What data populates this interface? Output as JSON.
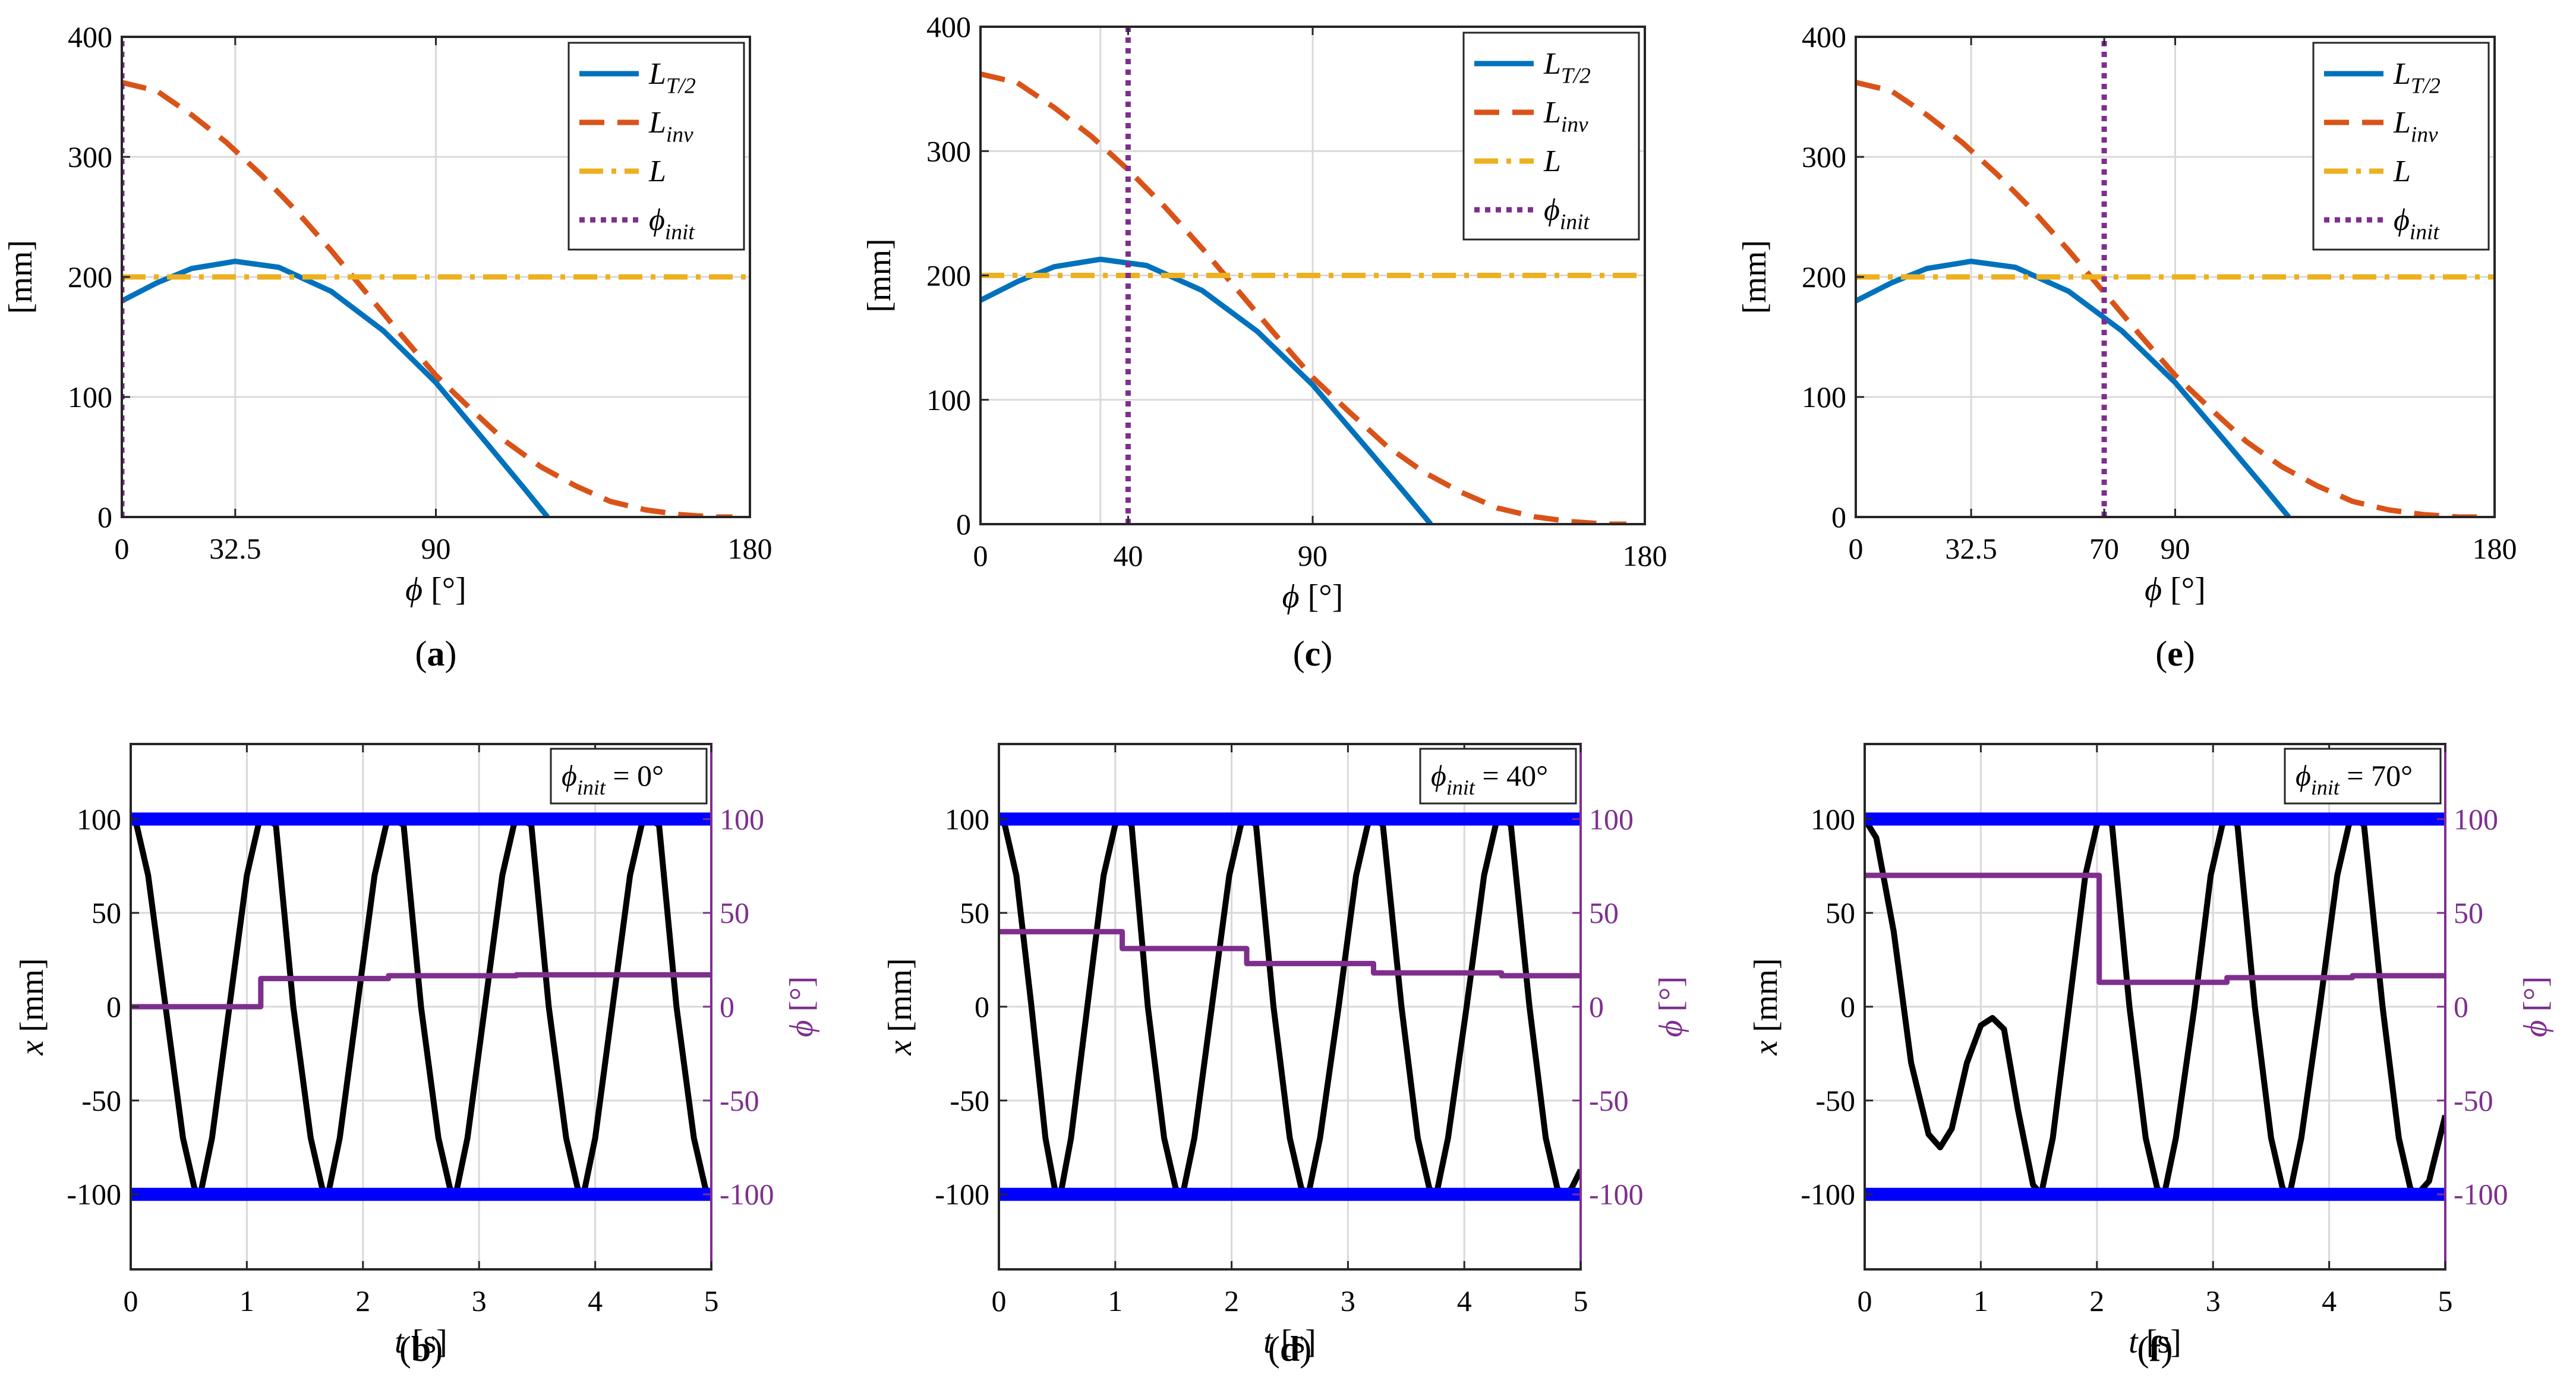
{
  "figure": {
    "panel_labels": [
      "(a)",
      "(c)",
      "(e)",
      "(b)",
      "(d)",
      "(f)"
    ]
  },
  "colors": {
    "L_T2": "#0072BD",
    "L_inv": "#D95319",
    "L": "#EDB120",
    "phi_init": "#7E2F8E",
    "x": "#000000",
    "bounds": "#0000FF",
    "phi_axis": "#7E2F8E",
    "grid": "#d9d9d9"
  },
  "chart_data": [
    {
      "id": "a",
      "type": "line",
      "panel_label": "(a)",
      "xlabel": "ϕ [°]",
      "ylabel": "[mm]",
      "xlim": [
        0,
        180
      ],
      "ylim": [
        0,
        400
      ],
      "xticks": [
        0,
        32.5,
        90,
        180
      ],
      "xtick_labels": [
        "0",
        "32.5",
        "90",
        "180"
      ],
      "yticks": [
        0,
        100,
        200,
        300,
        400
      ],
      "ytick_labels": [
        "0",
        "100",
        "200",
        "300",
        "400"
      ],
      "grid_x": [
        32.5,
        90
      ],
      "grid_y": [
        100,
        200,
        300
      ],
      "legend": [
        "L_T/2",
        "L_inv",
        "L",
        "ϕ_init"
      ],
      "legend_position": "top-right",
      "series": [
        {
          "name": "L_T/2",
          "x": [
            0,
            10,
            20,
            32.5,
            45,
            60,
            75,
            90,
            105,
            115,
            122
          ],
          "values": [
            180,
            195,
            207,
            213,
            208,
            188,
            155,
            112,
            60,
            25,
            0
          ]
        },
        {
          "name": "L_inv",
          "x": [
            0,
            10,
            20,
            30,
            40,
            50,
            60,
            70,
            80,
            90,
            100,
            110,
            120,
            130,
            140,
            150,
            160,
            170,
            175
          ],
          "values": [
            362,
            355,
            335,
            312,
            285,
            255,
            222,
            187,
            152,
            118,
            90,
            63,
            42,
            26,
            13,
            6,
            2,
            0,
            0
          ]
        },
        {
          "name": "L",
          "x": [
            0,
            180
          ],
          "values": [
            200,
            200
          ]
        },
        {
          "name": "ϕ_init",
          "x": [
            0,
            0
          ],
          "values": [
            0,
            400
          ]
        }
      ]
    },
    {
      "id": "c",
      "type": "line",
      "panel_label": "(c)",
      "xlabel": "ϕ [°]",
      "ylabel": "[mm]",
      "xlim": [
        0,
        180
      ],
      "ylim": [
        0,
        400
      ],
      "xticks": [
        0,
        40,
        90,
        180
      ],
      "xtick_labels": [
        "0",
        "40",
        "90",
        "180"
      ],
      "yticks": [
        0,
        100,
        200,
        300,
        400
      ],
      "ytick_labels": [
        "0",
        "100",
        "200",
        "300",
        "400"
      ],
      "grid_x": [
        32.5,
        90
      ],
      "grid_y": [
        100,
        200,
        300
      ],
      "legend": [
        "L_T/2",
        "L_inv",
        "L",
        "ϕ_init"
      ],
      "legend_position": "top-right",
      "series": [
        {
          "name": "L_T/2",
          "x": [
            0,
            10,
            20,
            32.5,
            45,
            60,
            75,
            90,
            105,
            115,
            122
          ],
          "values": [
            180,
            195,
            207,
            213,
            208,
            188,
            155,
            112,
            60,
            25,
            0
          ]
        },
        {
          "name": "L_inv",
          "x": [
            0,
            10,
            20,
            30,
            40,
            50,
            60,
            70,
            80,
            90,
            100,
            110,
            120,
            130,
            140,
            150,
            160,
            170,
            175
          ],
          "values": [
            362,
            355,
            335,
            312,
            285,
            255,
            222,
            187,
            152,
            118,
            90,
            63,
            42,
            26,
            13,
            6,
            2,
            0,
            0
          ]
        },
        {
          "name": "L",
          "x": [
            0,
            180
          ],
          "values": [
            200,
            200
          ]
        },
        {
          "name": "ϕ_init",
          "x": [
            40,
            40
          ],
          "values": [
            0,
            400
          ]
        }
      ]
    },
    {
      "id": "e",
      "type": "line",
      "panel_label": "(e)",
      "xlabel": "ϕ [°]",
      "ylabel": "[mm]",
      "xlim": [
        0,
        180
      ],
      "ylim": [
        0,
        400
      ],
      "xticks": [
        0,
        32.5,
        70,
        90,
        180
      ],
      "xtick_labels": [
        "0",
        "32.5",
        "70",
        "90",
        "180"
      ],
      "yticks": [
        0,
        100,
        200,
        300,
        400
      ],
      "ytick_labels": [
        "0",
        "100",
        "200",
        "300",
        "400"
      ],
      "grid_x": [
        32.5,
        90
      ],
      "grid_y": [
        100,
        200,
        300
      ],
      "legend": [
        "L_T/2",
        "L_inv",
        "L",
        "ϕ_init"
      ],
      "legend_position": "top-right",
      "series": [
        {
          "name": "L_T/2",
          "x": [
            0,
            10,
            20,
            32.5,
            45,
            60,
            75,
            90,
            105,
            115,
            122
          ],
          "values": [
            180,
            195,
            207,
            213,
            208,
            188,
            155,
            112,
            60,
            25,
            0
          ]
        },
        {
          "name": "L_inv",
          "x": [
            0,
            10,
            20,
            30,
            40,
            50,
            60,
            70,
            80,
            90,
            100,
            110,
            120,
            130,
            140,
            150,
            160,
            170,
            175
          ],
          "values": [
            362,
            355,
            335,
            312,
            285,
            255,
            222,
            187,
            152,
            118,
            90,
            63,
            42,
            26,
            13,
            6,
            2,
            0,
            0
          ]
        },
        {
          "name": "L",
          "x": [
            0,
            180
          ],
          "values": [
            200,
            200
          ]
        },
        {
          "name": "ϕ_init",
          "x": [
            70,
            70
          ],
          "values": [
            0,
            400
          ]
        }
      ]
    },
    {
      "id": "b",
      "type": "line",
      "panel_label": "(b)",
      "xlabel": "t [s]",
      "ylabel": "x [mm]",
      "ylabel_right": "ϕ [°]",
      "xlim": [
        0,
        5
      ],
      "ylim": [
        -140,
        140
      ],
      "ylim_right": [
        -140,
        140
      ],
      "xticks": [
        0,
        1,
        2,
        3,
        4,
        5
      ],
      "xtick_labels": [
        "0",
        "1",
        "2",
        "3",
        "4",
        "5"
      ],
      "yticks": [
        -100,
        -50,
        0,
        50,
        100
      ],
      "ytick_labels": [
        "-100",
        "-50",
        "0",
        "50",
        "100"
      ],
      "yticks_right": [
        -100,
        -50,
        0,
        50,
        100
      ],
      "ytick_labels_right": [
        "-100",
        "-50",
        "0",
        "50",
        "100"
      ],
      "grid_x": [
        1,
        2,
        3,
        4
      ],
      "grid_y": [
        -50,
        0,
        50
      ],
      "annotation": "ϕ_init = 0°",
      "series": [
        {
          "name": "x",
          "axis": "left",
          "x": [
            0,
            0.05,
            0.15,
            0.3,
            0.45,
            0.55,
            0.6,
            0.7,
            0.85,
            1.0,
            1.1,
            1.15,
            1.25,
            1.4,
            1.55,
            1.65,
            1.7,
            1.8,
            1.95,
            2.1,
            2.2,
            2.25,
            2.35,
            2.5,
            2.65,
            2.75,
            2.8,
            2.9,
            3.05,
            3.2,
            3.3,
            3.35,
            3.45,
            3.6,
            3.75,
            3.85,
            3.9,
            4.0,
            4.15,
            4.3,
            4.4,
            4.45,
            4.55,
            4.7,
            4.85,
            4.95,
            5.0
          ],
          "values": [
            100,
            97,
            70,
            0,
            -70,
            -97,
            -100,
            -70,
            0,
            70,
            97,
            100,
            97,
            0,
            -70,
            -97,
            -100,
            -70,
            0,
            70,
            97,
            100,
            97,
            0,
            -70,
            -97,
            -100,
            -70,
            0,
            70,
            97,
            100,
            97,
            0,
            -70,
            -97,
            -100,
            -70,
            0,
            70,
            97,
            100,
            97,
            0,
            -70,
            -97,
            -100
          ]
        },
        {
          "name": "ϕ",
          "axis": "right",
          "x": [
            0,
            1.12,
            1.12,
            2.22,
            2.22,
            3.32,
            3.32,
            4.42,
            4.42,
            5.0
          ],
          "values": [
            0,
            0,
            15,
            15,
            16.5,
            16.5,
            17,
            17,
            17,
            17
          ]
        },
        {
          "name": "upper bound",
          "axis": "left",
          "x": [
            0,
            5
          ],
          "values": [
            100,
            100
          ]
        },
        {
          "name": "lower bound",
          "axis": "left",
          "x": [
            0,
            5
          ],
          "values": [
            -100,
            -100
          ]
        }
      ]
    },
    {
      "id": "d",
      "type": "line",
      "panel_label": "(d)",
      "xlabel": "t [s]",
      "ylabel": "x [mm]",
      "ylabel_right": "ϕ [°]",
      "xlim": [
        0,
        5
      ],
      "ylim": [
        -140,
        140
      ],
      "ylim_right": [
        -140,
        140
      ],
      "xticks": [
        0,
        1,
        2,
        3,
        4,
        5
      ],
      "xtick_labels": [
        "0",
        "1",
        "2",
        "3",
        "4",
        "5"
      ],
      "yticks": [
        -100,
        -50,
        0,
        50,
        100
      ],
      "ytick_labels": [
        "-100",
        "-50",
        "0",
        "50",
        "100"
      ],
      "yticks_right": [
        -100,
        -50,
        0,
        50,
        100
      ],
      "ytick_labels_right": [
        "-100",
        "-50",
        "0",
        "50",
        "100"
      ],
      "grid_x": [
        1,
        2,
        3,
        4
      ],
      "grid_y": [
        -50,
        0,
        50
      ],
      "annotation": "ϕ_init = 40°",
      "series": [
        {
          "name": "x",
          "axis": "left",
          "x": [
            0,
            0.05,
            0.15,
            0.28,
            0.4,
            0.48,
            0.53,
            0.62,
            0.76,
            0.9,
            1.0,
            1.06,
            1.14,
            1.28,
            1.42,
            1.52,
            1.58,
            1.68,
            1.83,
            1.98,
            2.08,
            2.13,
            2.21,
            2.36,
            2.5,
            2.6,
            2.66,
            2.76,
            2.92,
            3.07,
            3.17,
            3.22,
            3.3,
            3.46,
            3.6,
            3.7,
            3.76,
            3.86,
            4.02,
            4.17,
            4.27,
            4.32,
            4.4,
            4.56,
            4.7,
            4.8,
            4.86,
            4.92,
            5.0
          ],
          "values": [
            100,
            97,
            70,
            0,
            -70,
            -97,
            -100,
            -70,
            0,
            70,
            97,
            100,
            97,
            0,
            -70,
            -97,
            -100,
            -70,
            0,
            70,
            97,
            100,
            97,
            0,
            -70,
            -97,
            -100,
            -70,
            0,
            70,
            97,
            100,
            97,
            0,
            -70,
            -97,
            -100,
            -70,
            0,
            70,
            97,
            100,
            97,
            0,
            -70,
            -97,
            -100,
            -97,
            -87
          ]
        },
        {
          "name": "ϕ",
          "axis": "right",
          "x": [
            0,
            1.06,
            1.06,
            2.13,
            2.13,
            3.22,
            3.22,
            4.32,
            4.32,
            5.0
          ],
          "values": [
            40,
            40,
            31,
            31,
            23,
            23,
            18,
            18,
            16.5,
            16.5
          ]
        },
        {
          "name": "upper bound",
          "axis": "left",
          "x": [
            0,
            5
          ],
          "values": [
            100,
            100
          ]
        },
        {
          "name": "lower bound",
          "axis": "left",
          "x": [
            0,
            5
          ],
          "values": [
            -100,
            -100
          ]
        }
      ]
    },
    {
      "id": "f",
      "type": "line",
      "panel_label": "(f)",
      "xlabel": "t [s]",
      "ylabel": "x [mm]",
      "ylabel_right": "ϕ [°]",
      "xlim": [
        0,
        5
      ],
      "ylim": [
        -140,
        140
      ],
      "ylim_right": [
        -140,
        140
      ],
      "xticks": [
        0,
        1,
        2,
        3,
        4,
        5
      ],
      "xtick_labels": [
        "0",
        "1",
        "2",
        "3",
        "4",
        "5"
      ],
      "yticks": [
        -100,
        -50,
        0,
        50,
        100
      ],
      "ytick_labels": [
        "-100",
        "-50",
        "0",
        "50",
        "100"
      ],
      "yticks_right": [
        -100,
        -50,
        0,
        50,
        100
      ],
      "ytick_labels_right": [
        "-100",
        "-50",
        "0",
        "50",
        "100"
      ],
      "grid_x": [
        1,
        2,
        3,
        4
      ],
      "grid_y": [
        -50,
        0,
        50
      ],
      "annotation": "ϕ_init = 70°",
      "series": [
        {
          "name": "x",
          "axis": "left",
          "x": [
            0,
            0.1,
            0.25,
            0.4,
            0.55,
            0.65,
            0.75,
            0.88,
            1.0,
            1.1,
            1.2,
            1.32,
            1.45,
            1.52,
            1.62,
            1.76,
            1.9,
            2.0,
            2.05,
            2.13,
            2.28,
            2.42,
            2.52,
            2.58,
            2.68,
            2.84,
            2.98,
            3.08,
            3.13,
            3.21,
            3.36,
            3.5,
            3.6,
            3.66,
            3.76,
            3.92,
            4.07,
            4.17,
            4.22,
            4.3,
            4.46,
            4.6,
            4.7,
            4.76,
            4.86,
            5.0
          ],
          "values": [
            100,
            90,
            40,
            -30,
            -68,
            -75,
            -65,
            -30,
            -10,
            -6,
            -12,
            -55,
            -95,
            -100,
            -70,
            0,
            70,
            97,
            100,
            97,
            0,
            -70,
            -97,
            -100,
            -70,
            0,
            70,
            97,
            100,
            97,
            0,
            -70,
            -97,
            -100,
            -70,
            0,
            70,
            97,
            100,
            97,
            0,
            -70,
            -97,
            -100,
            -93,
            -58
          ]
        },
        {
          "name": "ϕ",
          "axis": "right",
          "x": [
            0,
            2.02,
            2.02,
            3.12,
            3.12,
            4.2,
            4.2,
            5.0
          ],
          "values": [
            70,
            70,
            13,
            13,
            15.5,
            15.5,
            16.5,
            16.5
          ]
        },
        {
          "name": "upper bound",
          "axis": "left",
          "x": [
            0,
            5
          ],
          "values": [
            100,
            100
          ]
        },
        {
          "name": "lower bound",
          "axis": "left",
          "x": [
            0,
            5
          ],
          "values": [
            -100,
            -100
          ]
        }
      ]
    }
  ]
}
